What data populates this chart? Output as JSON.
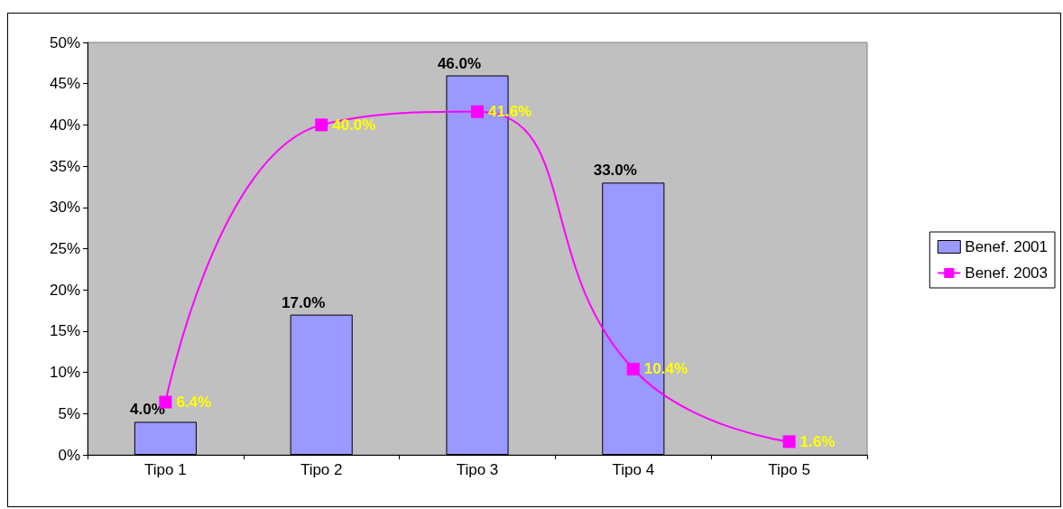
{
  "chart_data": {
    "type": "bar",
    "categories": [
      "Tipo 1",
      "Tipo 2",
      "Tipo 3",
      "Tipo 4",
      "Tipo 5"
    ],
    "series": [
      {
        "name": "Benef. 2001",
        "color": "#9999ff",
        "values": [
          4.0,
          17.0,
          46.0,
          33.0,
          null
        ],
        "value_labels": [
          "4.0%",
          "17.0%",
          "46.0%",
          "33.0%",
          null
        ]
      },
      {
        "name": "Benef. 2003",
        "type": "line",
        "color": "#ff00ff",
        "values": [
          6.4,
          40.0,
          41.6,
          10.4,
          1.6
        ],
        "value_labels": [
          "6.4%",
          "40.0%",
          "41.6%",
          "10.4%",
          "1.6%"
        ]
      }
    ],
    "ylim": [
      0,
      50
    ],
    "yticks": [
      {
        "value": 0,
        "label": "0%"
      },
      {
        "value": 5,
        "label": "5%"
      },
      {
        "value": 10,
        "label": "10%"
      },
      {
        "value": 15,
        "label": "15%"
      },
      {
        "value": 20,
        "label": "20%"
      },
      {
        "value": 25,
        "label": "25%"
      },
      {
        "value": 30,
        "label": "30%"
      },
      {
        "value": 35,
        "label": "35%"
      },
      {
        "value": 40,
        "label": "40%"
      },
      {
        "value": 45,
        "label": "45%"
      },
      {
        "value": 50,
        "label": "50%"
      }
    ],
    "grid": false,
    "legend": "right",
    "marker": "square",
    "line_style": "solid"
  }
}
